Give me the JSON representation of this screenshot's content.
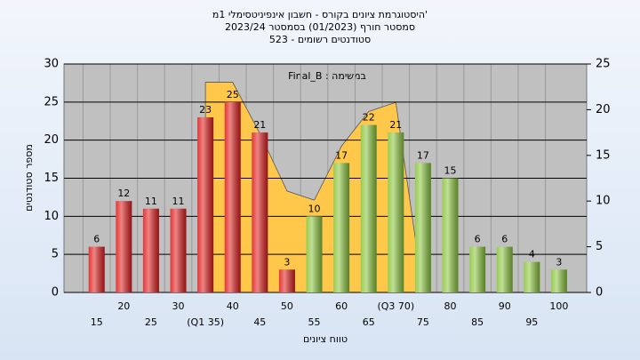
{
  "chart_data": {
    "type": "bar",
    "title": [
      "היסטוגרמת ציונים בקורס - חשבון אינפיניטסימלי 1מ'",
      "2023/24  סמסטר חורף  (01/2023)  בסמסטר",
      "523 - סטודנטים רשומים"
    ],
    "annotation": "Final_B : במשימה",
    "x_label": "טווח ציונים",
    "y_label": "מספר סטודנטים",
    "categories": [
      "15",
      "20",
      "25",
      "30",
      "(Q1 35)",
      "40",
      "45",
      "50",
      "55",
      "60",
      "65",
      "(Q3 70)",
      "75",
      "80",
      "85",
      "90",
      "95",
      "100"
    ],
    "series": [
      {
        "color": "#e02020",
        "values": [
          6,
          12,
          11,
          11,
          23,
          25,
          21,
          3,
          null,
          null,
          null,
          null,
          null,
          null,
          null,
          null,
          null,
          null
        ]
      },
      {
        "color": "#8cc63f",
        "values": [
          null,
          null,
          null,
          null,
          null,
          null,
          null,
          null,
          10,
          17,
          22,
          21,
          17,
          15,
          6,
          6,
          4,
          3
        ]
      },
      {
        "type": "area",
        "axis": "y2",
        "color": "#ffc84a",
        "values": [
          null,
          null,
          null,
          null,
          23,
          23,
          17.4,
          11.1,
          10.1,
          16,
          19.8,
          20.8,
          0,
          null,
          null,
          null,
          null,
          null
        ]
      }
    ],
    "ylim": [
      0,
      30
    ],
    "yticks": [
      0,
      5,
      10,
      15,
      20,
      25,
      30
    ],
    "y2lim": [
      0,
      25
    ],
    "y2ticks": [
      0,
      5,
      10,
      15,
      20,
      25
    ],
    "grid": true
  }
}
